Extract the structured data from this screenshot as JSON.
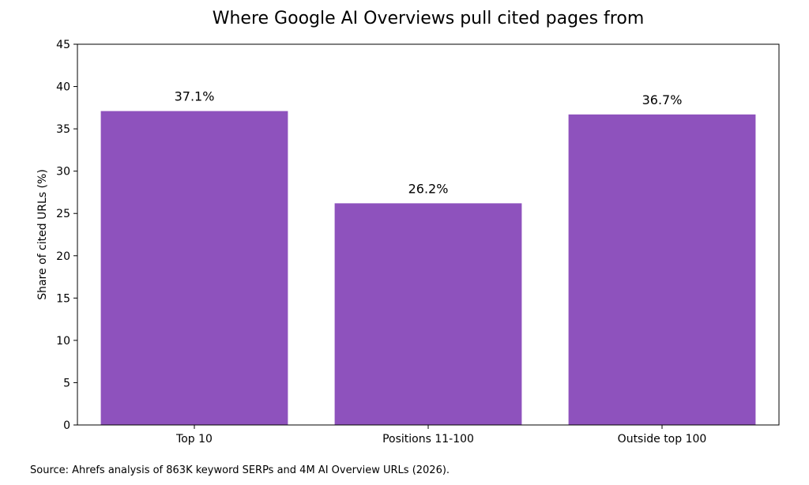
{
  "chart_data": {
    "type": "bar",
    "title": "Where Google AI Overviews pull cited pages from",
    "xlabel": "",
    "ylabel": "Share of cited URLs (%)",
    "categories": [
      "Top 10",
      "Positions 11-100",
      "Outside top 100"
    ],
    "values": [
      37.1,
      26.2,
      36.7
    ],
    "data_labels": [
      "37.1%",
      "26.2%",
      "36.7%"
    ],
    "ylim": [
      0,
      45
    ],
    "yticks": [
      0,
      5,
      10,
      15,
      20,
      25,
      30,
      35,
      40,
      45
    ],
    "grid": false,
    "bar_color": "#8e52bd",
    "source": "Source: Ahrefs analysis of 863K keyword SERPs and 4M AI Overview URLs (2026)."
  }
}
